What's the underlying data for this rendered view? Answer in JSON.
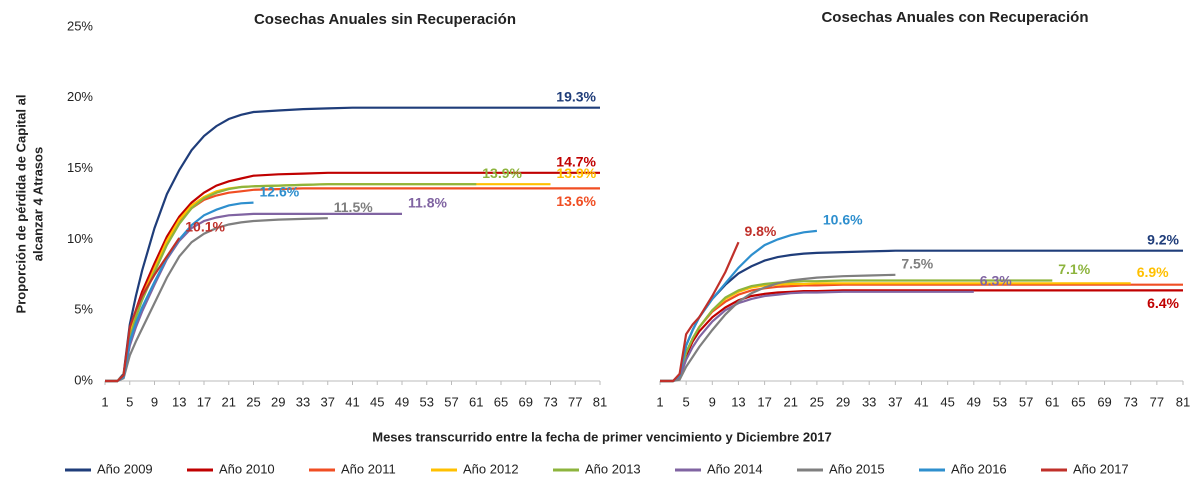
{
  "chart_data": [
    {
      "type": "line",
      "title": "Cosechas Anuales sin Recuperación",
      "ylabel": [
        "Proporción de pérdida de Capital al",
        "alcanzar 4 Atrasos"
      ],
      "xlabel": "Meses transcurrido entre la fecha de primer vencimiento y Diciembre 2017",
      "x": [
        1,
        3,
        4,
        5,
        6,
        7,
        9,
        11,
        13,
        15,
        17,
        19,
        21,
        23,
        25,
        29,
        33,
        37,
        41,
        45,
        49,
        53,
        57,
        61,
        65,
        69,
        73,
        77,
        81
      ],
      "xlim": [
        1,
        81
      ],
      "xticks": [
        1,
        5,
        9,
        13,
        17,
        21,
        25,
        29,
        33,
        37,
        41,
        45,
        49,
        53,
        57,
        61,
        65,
        69,
        73,
        77,
        81
      ],
      "ylim": [
        0,
        25
      ],
      "yticks": [
        {
          "value": 0,
          "label": "0%"
        },
        {
          "value": 5,
          "label": "5%"
        },
        {
          "value": 10,
          "label": "10%"
        },
        {
          "value": 15,
          "label": "15%"
        },
        {
          "value": 20,
          "label": "20%"
        },
        {
          "value": 25,
          "label": "25%"
        }
      ],
      "series": [
        {
          "name": "Año 2009",
          "color": "#1f3d7a",
          "label": "19.3%",
          "values": [
            0,
            0,
            0.5,
            4,
            6,
            7.8,
            10.8,
            13.2,
            14.9,
            16.3,
            17.3,
            18,
            18.5,
            18.8,
            19,
            19.1,
            19.2,
            19.25,
            19.3,
            19.3,
            19.3,
            19.3,
            19.3,
            19.3,
            19.3,
            19.3,
            19.3,
            19.3,
            19.3
          ]
        },
        {
          "name": "Año 2010",
          "color": "#c00000",
          "label": "14.7%",
          "values": [
            0,
            0,
            0.4,
            3.5,
            5,
            6.3,
            8.3,
            10.2,
            11.6,
            12.6,
            13.3,
            13.8,
            14.1,
            14.3,
            14.5,
            14.6,
            14.65,
            14.7,
            14.7,
            14.7,
            14.7,
            14.7,
            14.7,
            14.7,
            14.7,
            14.7,
            14.7,
            14.7,
            14.7
          ]
        },
        {
          "name": "Año 2011",
          "color": "#f04e23",
          "label": "13.6%",
          "values": [
            0,
            0,
            0.4,
            3.3,
            4.8,
            6,
            8,
            9.9,
            11.3,
            12.2,
            12.8,
            13.1,
            13.3,
            13.4,
            13.5,
            13.55,
            13.6,
            13.6,
            13.6,
            13.6,
            13.6,
            13.6,
            13.6,
            13.6,
            13.6,
            13.6,
            13.6,
            13.6,
            13.6
          ]
        },
        {
          "name": "Año 2012",
          "color": "#ffc000",
          "label": "13.9%",
          "values": [
            0,
            0,
            0.4,
            3.2,
            4.7,
            5.9,
            7.9,
            9.9,
            11.4,
            12.4,
            13,
            13.4,
            13.6,
            13.7,
            13.75,
            13.8,
            13.85,
            13.9,
            13.9,
            13.9,
            13.9,
            13.9,
            13.9,
            13.9,
            13.9,
            13.9,
            13.9,
            null,
            null
          ]
        },
        {
          "name": "Año 2013",
          "color": "#8db43d",
          "label": "13.9%",
          "values": [
            0,
            0,
            0.4,
            3,
            4.5,
            5.7,
            7.7,
            9.6,
            11.1,
            12.2,
            12.9,
            13.3,
            13.55,
            13.7,
            13.75,
            13.8,
            13.85,
            13.9,
            13.9,
            13.9,
            13.9,
            13.9,
            13.9,
            13.9,
            null,
            null,
            null,
            null,
            null
          ]
        },
        {
          "name": "Año 2014",
          "color": "#8064a2",
          "label": "11.8%",
          "values": [
            0,
            0,
            0.3,
            2.5,
            3.8,
            4.9,
            6.8,
            8.6,
            9.9,
            10.8,
            11.3,
            11.55,
            11.7,
            11.75,
            11.8,
            11.8,
            11.8,
            11.8,
            11.8,
            11.8,
            11.8,
            null,
            null,
            null,
            null,
            null,
            null,
            null,
            null
          ]
        },
        {
          "name": "Año 2015",
          "color": "#7f7f7f",
          "label": "11.5%",
          "values": [
            0,
            0,
            0.2,
            1.8,
            2.8,
            3.7,
            5.5,
            7.3,
            8.8,
            9.8,
            10.4,
            10.8,
            11.05,
            11.2,
            11.3,
            11.4,
            11.45,
            11.5,
            null,
            null,
            null,
            null,
            null,
            null,
            null,
            null,
            null,
            null,
            null
          ]
        },
        {
          "name": "Año 2016",
          "color": "#2e8fce",
          "label": "12.6%",
          "values": [
            0,
            0,
            0.3,
            2.8,
            4.1,
            5.2,
            7,
            8.7,
            10,
            11,
            11.7,
            12.1,
            12.4,
            12.55,
            12.6,
            null,
            null,
            null,
            null,
            null,
            null,
            null,
            null,
            null,
            null,
            null,
            null,
            null,
            null
          ]
        },
        {
          "name": "Año 2017",
          "color": "#c0302a",
          "label": "10.1%",
          "values": [
            0,
            0,
            0.4,
            3.8,
            5,
            6,
            7.5,
            8.8,
            10.1,
            null,
            null,
            null,
            null,
            null,
            null,
            null,
            null,
            null,
            null,
            null,
            null,
            null,
            null,
            null,
            null,
            null,
            null,
            null,
            null
          ]
        }
      ]
    },
    {
      "type": "line",
      "title": "Cosechas Anuales con Recuperación",
      "x": [
        1,
        3,
        4,
        5,
        6,
        7,
        9,
        11,
        13,
        15,
        17,
        19,
        21,
        23,
        25,
        29,
        33,
        37,
        41,
        45,
        49,
        53,
        57,
        61,
        65,
        69,
        73,
        77,
        81
      ],
      "xlim": [
        1,
        81
      ],
      "xticks": [
        1,
        5,
        9,
        13,
        17,
        21,
        25,
        29,
        33,
        37,
        41,
        45,
        49,
        53,
        57,
        61,
        65,
        69,
        73,
        77,
        81
      ],
      "ylim": [
        0,
        25
      ],
      "series": [
        {
          "name": "Año 2009",
          "color": "#1f3d7a",
          "label": "9.2%",
          "values": [
            0,
            0,
            0.4,
            2.5,
            3.6,
            4.5,
            5.8,
            6.8,
            7.6,
            8.1,
            8.5,
            8.75,
            8.9,
            9,
            9.05,
            9.1,
            9.15,
            9.2,
            9.2,
            9.2,
            9.2,
            9.2,
            9.2,
            9.2,
            9.2,
            9.2,
            9.2,
            9.2,
            9.2
          ]
        },
        {
          "name": "Año 2010",
          "color": "#c00000",
          "label": "6.4%",
          "values": [
            0,
            0,
            0.3,
            1.8,
            2.8,
            3.5,
            4.5,
            5.2,
            5.7,
            6,
            6.15,
            6.25,
            6.3,
            6.35,
            6.35,
            6.4,
            6.4,
            6.4,
            6.4,
            6.4,
            6.4,
            6.4,
            6.4,
            6.4,
            6.4,
            6.4,
            6.4,
            6.4,
            6.4
          ]
        },
        {
          "name": "Año 2011",
          "color": "#f04e23",
          "values": [
            0,
            0,
            0.3,
            2,
            3,
            3.8,
            4.9,
            5.6,
            6.1,
            6.4,
            6.55,
            6.65,
            6.7,
            6.75,
            6.75,
            6.8,
            6.8,
            6.8,
            6.8,
            6.8,
            6.8,
            6.8,
            6.8,
            6.8,
            6.8,
            6.8,
            6.8,
            6.8,
            6.8
          ]
        },
        {
          "name": "Año 2012",
          "color": "#ffc000",
          "label": "6.9%",
          "values": [
            0,
            0,
            0.3,
            2,
            3,
            3.8,
            5,
            5.8,
            6.3,
            6.6,
            6.75,
            6.8,
            6.85,
            6.85,
            6.9,
            6.9,
            6.9,
            6.9,
            6.9,
            6.9,
            6.9,
            6.9,
            6.9,
            6.9,
            6.9,
            6.9,
            6.9,
            null,
            null
          ]
        },
        {
          "name": "Año 2013",
          "color": "#8db43d",
          "label": "7.1%",
          "values": [
            0,
            0,
            0.3,
            2,
            3,
            3.8,
            5,
            5.9,
            6.4,
            6.7,
            6.85,
            6.95,
            7,
            7.05,
            7.05,
            7.1,
            7.1,
            7.1,
            7.1,
            7.1,
            7.1,
            7.1,
            7.1,
            7.1,
            null,
            null,
            null,
            null,
            null
          ]
        },
        {
          "name": "Año 2014",
          "color": "#8064a2",
          "label": "6.3%",
          "values": [
            0,
            0,
            0.2,
            1.5,
            2.4,
            3.1,
            4.2,
            5,
            5.5,
            5.8,
            6,
            6.1,
            6.2,
            6.25,
            6.25,
            6.3,
            6.3,
            6.3,
            6.3,
            6.3,
            6.3,
            null,
            null,
            null,
            null,
            null,
            null,
            null,
            null
          ]
        },
        {
          "name": "Año 2015",
          "color": "#7f7f7f",
          "label": "7.5%",
          "values": [
            0,
            0,
            0.1,
            1,
            1.7,
            2.4,
            3.6,
            4.7,
            5.6,
            6.2,
            6.6,
            6.9,
            7.1,
            7.2,
            7.3,
            7.4,
            7.45,
            7.5,
            null,
            null,
            null,
            null,
            null,
            null,
            null,
            null,
            null,
            null,
            null
          ]
        },
        {
          "name": "Año 2016",
          "color": "#2e8fce",
          "label": "10.6%",
          "values": [
            0,
            0,
            0.4,
            2.5,
            3.6,
            4.5,
            5.8,
            6.9,
            8,
            8.9,
            9.6,
            10,
            10.3,
            10.5,
            10.6,
            null,
            null,
            null,
            null,
            null,
            null,
            null,
            null,
            null,
            null,
            null,
            null,
            null,
            null
          ]
        },
        {
          "name": "Año 2017",
          "color": "#c0302a",
          "label": "9.8%",
          "values": [
            0,
            0,
            0.5,
            3.3,
            4,
            4.5,
            6,
            7.7,
            9.8,
            null,
            null,
            null,
            null,
            null,
            null,
            null,
            null,
            null,
            null,
            null,
            null,
            null,
            null,
            null,
            null,
            null,
            null,
            null,
            null
          ]
        }
      ]
    }
  ]
}
